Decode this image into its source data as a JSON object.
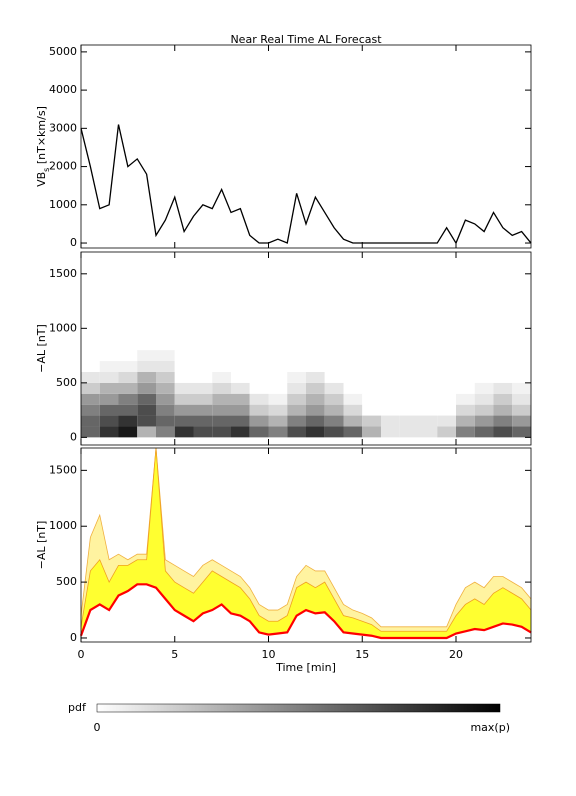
{
  "chart_data": [
    {
      "type": "line",
      "title": "Near Real Time AL Forecast",
      "ylabel": {
        "main": "VB",
        "sub": "s",
        "unit": " [nT×km/s]"
      },
      "xlim": [
        0,
        24
      ],
      "xticks": [
        0,
        5,
        10,
        15,
        20
      ],
      "ylim": [
        -130,
        5180
      ],
      "yticks": [
        0,
        1000,
        2000,
        3000,
        4000,
        5000
      ],
      "x": [
        0,
        0.5,
        1,
        1.5,
        2,
        2.5,
        3,
        3.5,
        4,
        4.5,
        5,
        5.5,
        6,
        6.5,
        7,
        7.5,
        8,
        8.5,
        9,
        9.5,
        10,
        10.5,
        11,
        11.5,
        12,
        12.5,
        13,
        13.5,
        14,
        14.5,
        15,
        15.5,
        16,
        16.5,
        17,
        17.5,
        18,
        18.5,
        19,
        19.5,
        20,
        20.5,
        21,
        21.5,
        22,
        22.5,
        23,
        23.5,
        24
      ],
      "values": [
        3000,
        2000,
        900,
        1000,
        3100,
        2000,
        2200,
        1800,
        200,
        600,
        1200,
        300,
        700,
        1000,
        900,
        1400,
        800,
        900,
        200,
        0,
        0,
        100,
        0,
        1300,
        500,
        1200,
        800,
        400,
        100,
        0,
        0,
        0,
        0,
        0,
        0,
        0,
        0,
        0,
        0,
        400,
        0,
        600,
        500,
        300,
        800,
        400,
        200,
        300,
        0
      ],
      "color": "#000000"
    },
    {
      "type": "heatmap",
      "ylabel": "−AL [nT]",
      "xlim": [
        0,
        24
      ],
      "xticks": [
        0,
        5,
        10,
        15,
        20
      ],
      "ylim": [
        -70,
        1700
      ],
      "yticks": [
        0,
        500,
        1000,
        1500
      ],
      "xbins": [
        0,
        1,
        2,
        3,
        4,
        5,
        6,
        7,
        8,
        9,
        10,
        11,
        12,
        13,
        14,
        15,
        16,
        17,
        18,
        19,
        20,
        21,
        22,
        23,
        24
      ],
      "ybins": [
        0,
        100,
        200,
        300,
        400,
        500,
        600,
        700,
        800
      ],
      "z": [
        [
          0.6,
          0.6,
          0.5,
          0.4,
          0.2,
          0.1,
          0,
          0
        ],
        [
          0.8,
          0.7,
          0.6,
          0.4,
          0.3,
          0.1,
          0.05,
          0
        ],
        [
          0.9,
          0.8,
          0.6,
          0.5,
          0.3,
          0.15,
          0.05,
          0
        ],
        [
          0.3,
          0.7,
          0.7,
          0.6,
          0.4,
          0.3,
          0.1,
          0.05
        ],
        [
          0.5,
          0.6,
          0.5,
          0.4,
          0.3,
          0.2,
          0.1,
          0.05
        ],
        [
          0.8,
          0.6,
          0.4,
          0.2,
          0.1,
          0,
          0,
          0
        ],
        [
          0.7,
          0.6,
          0.4,
          0.2,
          0.1,
          0,
          0,
          0
        ],
        [
          0.7,
          0.6,
          0.4,
          0.3,
          0.15,
          0.05,
          0,
          0
        ],
        [
          0.8,
          0.6,
          0.4,
          0.3,
          0.1,
          0,
          0,
          0
        ],
        [
          0.6,
          0.4,
          0.2,
          0.1,
          0,
          0,
          0,
          0
        ],
        [
          0.5,
          0.3,
          0.15,
          0.05,
          0,
          0,
          0,
          0
        ],
        [
          0.7,
          0.5,
          0.3,
          0.2,
          0.1,
          0.05,
          0,
          0
        ],
        [
          0.8,
          0.6,
          0.4,
          0.3,
          0.2,
          0.1,
          0,
          0
        ],
        [
          0.7,
          0.5,
          0.3,
          0.2,
          0.1,
          0,
          0,
          0
        ],
        [
          0.6,
          0.3,
          0.15,
          0.05,
          0,
          0,
          0,
          0
        ],
        [
          0.3,
          0.2,
          0,
          0,
          0,
          0,
          0,
          0
        ],
        [
          0.1,
          0.1,
          0,
          0,
          0,
          0,
          0,
          0
        ],
        [
          0.1,
          0.1,
          0,
          0,
          0,
          0,
          0,
          0
        ],
        [
          0.1,
          0.1,
          0,
          0,
          0,
          0,
          0,
          0
        ],
        [
          0.2,
          0.1,
          0,
          0,
          0,
          0,
          0,
          0
        ],
        [
          0.5,
          0.3,
          0.15,
          0.05,
          0,
          0,
          0,
          0
        ],
        [
          0.6,
          0.4,
          0.2,
          0.1,
          0.05,
          0,
          0,
          0
        ],
        [
          0.7,
          0.5,
          0.3,
          0.2,
          0.1,
          0,
          0,
          0
        ],
        [
          0.6,
          0.4,
          0.2,
          0.1,
          0.05,
          0,
          0,
          0
        ]
      ]
    },
    {
      "type": "band",
      "ylabel": "−AL [nT]",
      "xlabel": "Time [min]",
      "xlim": [
        0,
        24
      ],
      "xticks": [
        0,
        5,
        10,
        15,
        20
      ],
      "ylim": [
        -36,
        1700
      ],
      "yticks": [
        0,
        500,
        1000,
        1500
      ],
      "x": [
        0,
        0.5,
        1,
        1.5,
        2,
        2.5,
        3,
        3.5,
        4,
        4.5,
        5,
        5.5,
        6,
        6.5,
        7,
        7.5,
        8,
        8.5,
        9,
        9.5,
        10,
        10.5,
        11,
        11.5,
        12,
        12.5,
        13,
        13.5,
        14,
        14.5,
        15,
        15.5,
        16,
        16.5,
        17,
        17.5,
        18,
        18.5,
        19,
        19.5,
        20,
        20.5,
        21,
        21.5,
        22,
        22.5,
        23,
        23.5,
        24
      ],
      "series": [
        {
          "color": "#ff0000",
          "values": [
            20,
            250,
            300,
            250,
            380,
            420,
            480,
            480,
            450,
            350,
            250,
            200,
            150,
            220,
            250,
            300,
            220,
            200,
            150,
            50,
            30,
            40,
            50,
            200,
            250,
            220,
            230,
            150,
            50,
            40,
            30,
            20,
            0,
            0,
            0,
            0,
            0,
            0,
            0,
            0,
            40,
            60,
            80,
            70,
            100,
            130,
            120,
            100,
            50
          ]
        },
        {
          "color": "#ffff30",
          "values": [
            100,
            600,
            700,
            500,
            650,
            650,
            700,
            700,
            1700,
            600,
            500,
            450,
            400,
            500,
            600,
            550,
            500,
            450,
            350,
            200,
            150,
            150,
            200,
            450,
            500,
            450,
            500,
            350,
            200,
            180,
            150,
            120,
            60,
            60,
            60,
            60,
            60,
            60,
            60,
            60,
            200,
            300,
            350,
            300,
            400,
            450,
            400,
            350,
            250
          ]
        },
        {
          "color": "#fff3a0",
          "values": [
            200,
            900,
            1100,
            700,
            750,
            700,
            750,
            750,
            1700,
            700,
            650,
            600,
            550,
            650,
            700,
            650,
            600,
            550,
            450,
            300,
            250,
            250,
            300,
            550,
            650,
            600,
            600,
            450,
            300,
            250,
            220,
            180,
            100,
            100,
            100,
            100,
            100,
            100,
            100,
            100,
            300,
            450,
            500,
            450,
            550,
            550,
            500,
            450,
            350
          ]
        }
      ]
    }
  ],
  "colorbar": {
    "label": "pdf",
    "min": 0,
    "max_label": "max(p)"
  }
}
